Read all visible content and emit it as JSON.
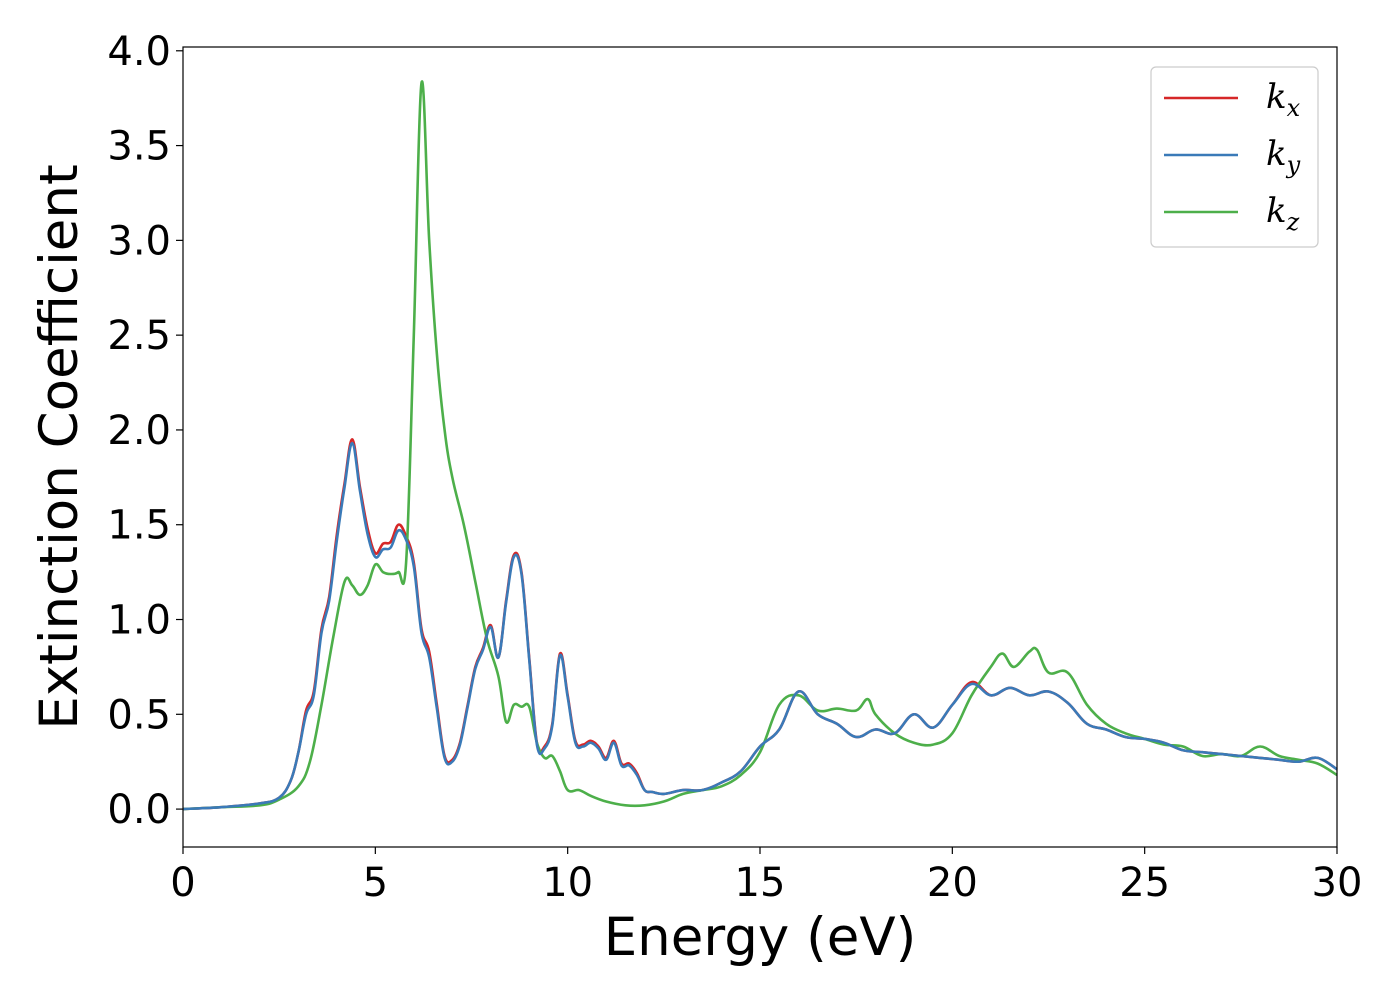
{
  "chart_data": {
    "type": "line",
    "xlabel": "Energy (eV)",
    "ylabel": "Extinction Coefficient",
    "xlim": [
      0,
      30
    ],
    "ylim": [
      -0.2,
      4.02
    ],
    "xticks": [
      0,
      5,
      10,
      15,
      20,
      25,
      30
    ],
    "xtick_labels": [
      "0",
      "5",
      "10",
      "15",
      "20",
      "25",
      "30"
    ],
    "yticks": [
      0.0,
      0.5,
      1.0,
      1.5,
      2.0,
      2.5,
      3.0,
      3.5,
      4.0
    ],
    "ytick_labels": [
      "0.0",
      "0.5",
      "1.0",
      "1.5",
      "2.0",
      "2.5",
      "3.0",
      "3.5",
      "4.0"
    ],
    "grid": false,
    "legend_position": "top-right",
    "series": [
      {
        "name": "k",
        "name_subscript": "x",
        "color": "#d62728",
        "x": [
          0,
          1,
          2,
          2.5,
          2.8,
          3.0,
          3.2,
          3.4,
          3.6,
          3.8,
          4.0,
          4.2,
          4.4,
          4.6,
          4.8,
          5.0,
          5.2,
          5.4,
          5.6,
          5.8,
          6.0,
          6.2,
          6.4,
          6.6,
          6.8,
          7.0,
          7.2,
          7.4,
          7.6,
          7.8,
          8.0,
          8.2,
          8.4,
          8.6,
          8.8,
          9.0,
          9.2,
          9.4,
          9.6,
          9.8,
          10.0,
          10.2,
          10.4,
          10.6,
          10.8,
          11.0,
          11.2,
          11.4,
          11.6,
          11.8,
          12.0,
          12.2,
          12.5,
          13.0,
          13.5,
          14.0,
          14.5,
          15.0,
          15.5,
          16.0,
          16.5,
          17.0,
          17.5,
          18.0,
          18.5,
          19.0,
          19.5,
          20.0,
          20.5,
          21.0,
          21.5,
          22.0,
          22.5,
          23.0,
          23.5,
          24.0,
          24.5,
          25.0,
          25.5,
          26.0,
          26.5,
          27.0,
          27.5,
          28.0,
          28.5,
          29.0,
          29.5,
          30.0
        ],
        "y": [
          0,
          0.01,
          0.03,
          0.06,
          0.15,
          0.3,
          0.52,
          0.62,
          0.95,
          1.12,
          1.45,
          1.72,
          1.95,
          1.7,
          1.48,
          1.35,
          1.4,
          1.41,
          1.5,
          1.44,
          1.3,
          0.95,
          0.83,
          0.55,
          0.28,
          0.26,
          0.35,
          0.55,
          0.75,
          0.85,
          0.97,
          0.8,
          1.1,
          1.34,
          1.25,
          0.8,
          0.35,
          0.33,
          0.45,
          0.82,
          0.6,
          0.36,
          0.34,
          0.36,
          0.33,
          0.27,
          0.36,
          0.24,
          0.24,
          0.19,
          0.1,
          0.09,
          0.08,
          0.1,
          0.1,
          0.14,
          0.2,
          0.33,
          0.42,
          0.62,
          0.5,
          0.45,
          0.38,
          0.42,
          0.4,
          0.5,
          0.43,
          0.55,
          0.67,
          0.6,
          0.64,
          0.6,
          0.62,
          0.56,
          0.45,
          0.42,
          0.38,
          0.37,
          0.35,
          0.31,
          0.3,
          0.29,
          0.28,
          0.27,
          0.26,
          0.25,
          0.27,
          0.21
        ]
      },
      {
        "name": "k",
        "name_subscript": "y",
        "color": "#3a7ab8",
        "x": [
          0,
          1,
          2,
          2.5,
          2.8,
          3.0,
          3.2,
          3.4,
          3.6,
          3.8,
          4.0,
          4.2,
          4.4,
          4.6,
          4.8,
          5.0,
          5.2,
          5.4,
          5.6,
          5.8,
          6.0,
          6.2,
          6.4,
          6.6,
          6.8,
          7.0,
          7.2,
          7.4,
          7.6,
          7.8,
          8.0,
          8.2,
          8.4,
          8.6,
          8.8,
          9.0,
          9.2,
          9.4,
          9.6,
          9.8,
          10.0,
          10.2,
          10.4,
          10.6,
          10.8,
          11.0,
          11.2,
          11.4,
          11.6,
          11.8,
          12.0,
          12.2,
          12.5,
          13.0,
          13.5,
          14.0,
          14.5,
          15.0,
          15.5,
          16.0,
          16.5,
          17.0,
          17.5,
          18.0,
          18.5,
          19.0,
          19.5,
          20.0,
          20.5,
          21.0,
          21.5,
          22.0,
          22.5,
          23.0,
          23.5,
          24.0,
          24.5,
          25.0,
          25.5,
          26.0,
          26.5,
          27.0,
          27.5,
          28.0,
          28.5,
          29.0,
          29.5,
          30.0
        ],
        "y": [
          0,
          0.01,
          0.03,
          0.06,
          0.15,
          0.3,
          0.5,
          0.6,
          0.93,
          1.1,
          1.42,
          1.7,
          1.93,
          1.68,
          1.45,
          1.33,
          1.37,
          1.38,
          1.47,
          1.42,
          1.28,
          0.93,
          0.8,
          0.53,
          0.27,
          0.25,
          0.34,
          0.54,
          0.74,
          0.84,
          0.96,
          0.8,
          1.09,
          1.33,
          1.24,
          0.79,
          0.34,
          0.32,
          0.44,
          0.81,
          0.59,
          0.35,
          0.33,
          0.35,
          0.32,
          0.26,
          0.35,
          0.23,
          0.23,
          0.18,
          0.1,
          0.09,
          0.08,
          0.1,
          0.1,
          0.14,
          0.2,
          0.33,
          0.42,
          0.62,
          0.5,
          0.45,
          0.38,
          0.42,
          0.4,
          0.5,
          0.43,
          0.55,
          0.66,
          0.6,
          0.64,
          0.6,
          0.62,
          0.56,
          0.45,
          0.42,
          0.38,
          0.37,
          0.35,
          0.31,
          0.3,
          0.29,
          0.28,
          0.27,
          0.26,
          0.25,
          0.27,
          0.21
        ]
      },
      {
        "name": "k",
        "name_subscript": "z",
        "color": "#4daf4a",
        "x": [
          0,
          1,
          2,
          2.5,
          3.0,
          3.3,
          3.6,
          3.9,
          4.2,
          4.4,
          4.6,
          4.8,
          5.0,
          5.2,
          5.4,
          5.6,
          5.8,
          6.0,
          6.2,
          6.4,
          6.6,
          6.8,
          7.0,
          7.3,
          7.6,
          7.9,
          8.2,
          8.4,
          8.6,
          8.8,
          9.0,
          9.2,
          9.4,
          9.6,
          9.8,
          10.0,
          10.3,
          10.6,
          11.0,
          11.5,
          12.0,
          12.5,
          13.0,
          13.5,
          14.0,
          14.5,
          15.0,
          15.5,
          16.0,
          16.5,
          17.0,
          17.5,
          17.8,
          18.0,
          18.5,
          19.0,
          19.5,
          20.0,
          20.5,
          21.0,
          21.3,
          21.6,
          22.0,
          22.2,
          22.5,
          23.0,
          23.5,
          24.0,
          24.5,
          25.0,
          25.5,
          26.0,
          26.5,
          27.0,
          27.5,
          28.0,
          28.5,
          29.0,
          29.5,
          30.0
        ],
        "y": [
          0,
          0.01,
          0.02,
          0.05,
          0.12,
          0.25,
          0.55,
          0.9,
          1.2,
          1.18,
          1.13,
          1.18,
          1.29,
          1.25,
          1.24,
          1.25,
          1.3,
          2.5,
          3.83,
          3.0,
          2.4,
          2.0,
          1.75,
          1.5,
          1.2,
          0.9,
          0.7,
          0.46,
          0.55,
          0.54,
          0.54,
          0.35,
          0.27,
          0.28,
          0.2,
          0.1,
          0.1,
          0.07,
          0.04,
          0.02,
          0.02,
          0.04,
          0.08,
          0.1,
          0.12,
          0.18,
          0.3,
          0.55,
          0.6,
          0.52,
          0.53,
          0.52,
          0.58,
          0.5,
          0.4,
          0.35,
          0.34,
          0.4,
          0.6,
          0.75,
          0.82,
          0.75,
          0.83,
          0.84,
          0.72,
          0.72,
          0.55,
          0.45,
          0.4,
          0.37,
          0.34,
          0.33,
          0.28,
          0.29,
          0.28,
          0.33,
          0.28,
          0.26,
          0.24,
          0.18
        ]
      }
    ]
  }
}
